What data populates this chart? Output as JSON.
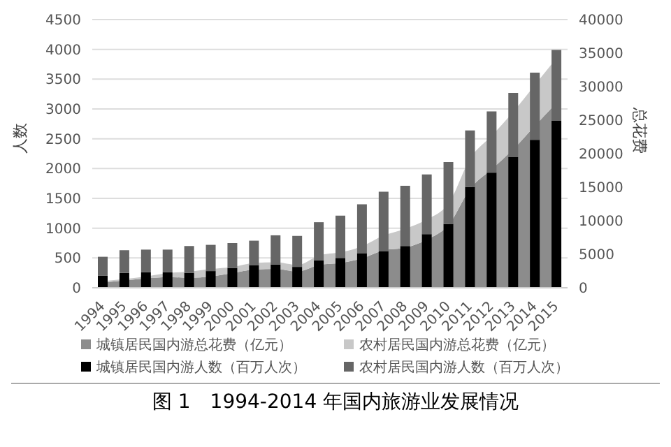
{
  "chart_data": {
    "type": "bar",
    "title": "图 1　1994-2014 年国内旅游业发展情况",
    "ylabel": "人数",
    "y2label": "总花费",
    "categories": [
      "1994",
      "1995",
      "1996",
      "1997",
      "1998",
      "1999",
      "2000",
      "2001",
      "2002",
      "2003",
      "2004",
      "2005",
      "2006",
      "2007",
      "2008",
      "2009",
      "2010",
      "2011",
      "2012",
      "2013",
      "2014",
      "2015"
    ],
    "stacked": true,
    "grid": "y",
    "legend": "bottom",
    "ylim": [
      0,
      4500
    ],
    "yticks": [
      0,
      500,
      1000,
      1500,
      2000,
      2500,
      3000,
      3500,
      4000,
      4500
    ],
    "y2lim": [
      0,
      40000
    ],
    "y2ticks": [
      0,
      5000,
      10000,
      15000,
      20000,
      25000,
      30000,
      35000,
      40000
    ],
    "series": [
      {
        "name": "城镇居民国内游总花费（亿元）",
        "type": "area",
        "axis": "y2",
        "color": "#8c8c8c",
        "values": [
          800,
          1100,
          1400,
          1600,
          1500,
          1700,
          2200,
          2700,
          2800,
          2400,
          3400,
          3700,
          4400,
          5600,
          6000,
          7200,
          9400,
          14800,
          17700,
          20700,
          24200,
          27600
        ]
      },
      {
        "name": "农村居民国内游总花费（亿元）",
        "type": "area",
        "axis": "y2",
        "color": "#c8c8c8",
        "values": [
          200,
          200,
          300,
          600,
          900,
          1100,
          900,
          1000,
          1000,
          1000,
          1400,
          1600,
          1800,
          2200,
          2800,
          3000,
          3200,
          4500,
          5000,
          5600,
          6100,
          6700
        ]
      },
      {
        "name": "城镇居民国内游人数（百万人次）",
        "type": "bar",
        "color": "#000000",
        "values": [
          200,
          250,
          260,
          260,
          250,
          280,
          330,
          380,
          390,
          350,
          460,
          500,
          580,
          610,
          700,
          900,
          1070,
          1690,
          1930,
          2190,
          2480,
          2800
        ]
      },
      {
        "name": "农村居民国内游人数（百万人次）",
        "type": "bar",
        "color": "#666666",
        "values": [
          320,
          380,
          380,
          380,
          450,
          440,
          420,
          410,
          490,
          520,
          640,
          710,
          820,
          1000,
          1010,
          1000,
          1040,
          950,
          1030,
          1080,
          1130,
          1190
        ]
      }
    ]
  }
}
